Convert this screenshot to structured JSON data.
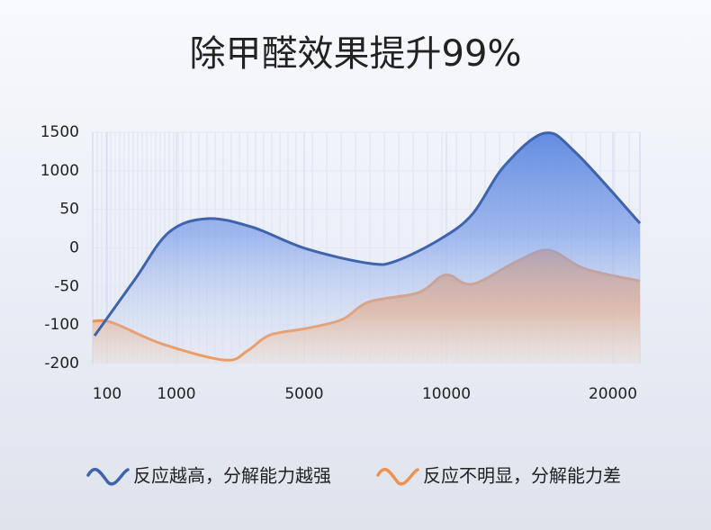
{
  "chart_data": {
    "type": "area",
    "title": "除甲醛效果提升99%",
    "xlim": [
      0,
      21600
    ],
    "xticks": [
      100,
      1000,
      5000,
      10000,
      20000
    ],
    "ylim": [
      -200,
      1500
    ],
    "yticks": [
      1500,
      1000,
      50,
      0,
      -50,
      -100,
      -200
    ],
    "grid": true,
    "series": [
      {
        "name": "反应越高，分解能力越强",
        "color": "#3f63ad",
        "x": [
          13,
          460,
          900,
          1960,
          3370,
          5060,
          7280,
          8230,
          9810,
          11570,
          13460,
          15890,
          17780,
          21600
        ],
        "values": [
          -128,
          -41,
          20,
          38,
          27,
          -1,
          -20,
          -17,
          12,
          44,
          1058,
          1488,
          1233,
          32
        ]
      },
      {
        "name": "反应不明显，分解能力差",
        "color": "#f0924f",
        "x": [
          0,
          170,
          813,
          2521,
          3225,
          3930,
          5063,
          6329,
          7278,
          9019,
          9968,
          11568,
          14270,
          16160,
          18320,
          21600
        ],
        "values": [
          -95,
          -97,
          -149,
          -191,
          -167,
          -126,
          -109,
          -93,
          -70,
          -58,
          -35,
          -47,
          -17,
          -3,
          -27,
          -43
        ]
      }
    ]
  }
}
